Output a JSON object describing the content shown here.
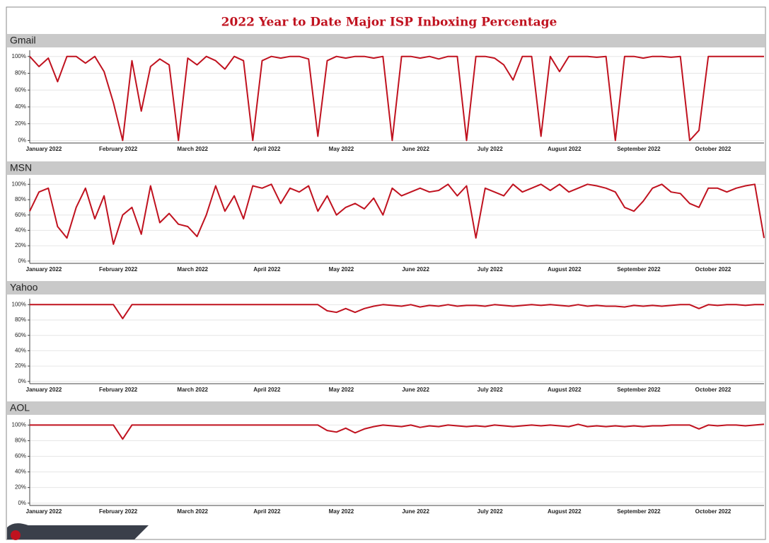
{
  "title": "2022 Year to Date Major ISP Inboxing Percentage",
  "chart_data": [
    {
      "type": "line",
      "title": "Gmail",
      "color": "#c0121f",
      "grid": true,
      "categories": [
        "January 2022",
        null,
        null,
        null,
        null,
        null,
        null,
        null,
        "February 2022",
        null,
        null,
        null,
        null,
        null,
        null,
        null,
        "March 2022",
        null,
        null,
        null,
        null,
        null,
        null,
        null,
        "April 2022",
        null,
        null,
        null,
        null,
        null,
        null,
        null,
        "May 2022",
        null,
        null,
        null,
        null,
        null,
        null,
        null,
        "June 2022",
        null,
        null,
        null,
        null,
        null,
        null,
        null,
        "July 2022",
        null,
        null,
        null,
        null,
        null,
        null,
        null,
        "August 2022",
        null,
        null,
        null,
        null,
        null,
        null,
        null,
        "September 2022",
        null,
        null,
        null,
        null,
        null,
        null,
        null,
        "October 2022",
        null,
        null,
        null,
        null,
        null,
        null,
        null
      ],
      "values": [
        100,
        88,
        98,
        70,
        100,
        100,
        92,
        100,
        82,
        45,
        0,
        95,
        35,
        88,
        97,
        90,
        0,
        98,
        90,
        100,
        95,
        85,
        100,
        95,
        0,
        95,
        100,
        98,
        100,
        100,
        97,
        5,
        95,
        100,
        98,
        100,
        100,
        98,
        100,
        0,
        100,
        100,
        98,
        100,
        97,
        100,
        100,
        0,
        100,
        100,
        98,
        90,
        72,
        100,
        100,
        5,
        100,
        82,
        100,
        100,
        100,
        99,
        100,
        0,
        100,
        100,
        98,
        100,
        100,
        99,
        100,
        0,
        12,
        100,
        100,
        100,
        100,
        100,
        100,
        100
      ],
      "ylim": [
        -3,
        104
      ],
      "yticks": [
        {
          "value": 0,
          "label": "0%"
        },
        {
          "value": 20,
          "label": "20%"
        },
        {
          "value": 40,
          "label": "40%"
        },
        {
          "value": 60,
          "label": "60%"
        },
        {
          "value": 80,
          "label": "80%"
        },
        {
          "value": 100,
          "label": "100%"
        }
      ]
    },
    {
      "type": "line",
      "title": "MSN",
      "color": "#c0121f",
      "grid": true,
      "categories": [
        "January 2022",
        null,
        null,
        null,
        null,
        null,
        null,
        null,
        "February 2022",
        null,
        null,
        null,
        null,
        null,
        null,
        null,
        "March 2022",
        null,
        null,
        null,
        null,
        null,
        null,
        null,
        "April 2022",
        null,
        null,
        null,
        null,
        null,
        null,
        null,
        "May 2022",
        null,
        null,
        null,
        null,
        null,
        null,
        null,
        "June 2022",
        null,
        null,
        null,
        null,
        null,
        null,
        null,
        "July 2022",
        null,
        null,
        null,
        null,
        null,
        null,
        null,
        "August 2022",
        null,
        null,
        null,
        null,
        null,
        null,
        null,
        "September 2022",
        null,
        null,
        null,
        null,
        null,
        null,
        null,
        "October 2022",
        null,
        null,
        null,
        null,
        null,
        null,
        null
      ],
      "values": [
        65,
        90,
        95,
        45,
        30,
        70,
        95,
        55,
        85,
        22,
        60,
        70,
        35,
        98,
        50,
        62,
        48,
        45,
        32,
        60,
        98,
        65,
        85,
        55,
        98,
        95,
        100,
        75,
        95,
        90,
        98,
        65,
        85,
        60,
        70,
        75,
        68,
        82,
        60,
        95,
        85,
        90,
        95,
        90,
        92,
        100,
        85,
        98,
        30,
        95,
        90,
        85,
        100,
        90,
        95,
        100,
        92,
        100,
        90,
        95,
        100,
        98,
        95,
        90,
        70,
        65,
        78,
        95,
        100,
        90,
        88,
        75,
        70,
        95,
        95,
        90,
        95,
        98,
        100,
        30
      ],
      "ylim": [
        -3,
        104
      ],
      "yticks": [
        {
          "value": 0,
          "label": "0%"
        },
        {
          "value": 20,
          "label": "20%"
        },
        {
          "value": 40,
          "label": "40%"
        },
        {
          "value": 60,
          "label": "60%"
        },
        {
          "value": 80,
          "label": "80%"
        },
        {
          "value": 100,
          "label": "100%"
        }
      ]
    },
    {
      "type": "line",
      "title": "Yahoo",
      "color": "#c0121f",
      "grid": true,
      "categories": [
        "January 2022",
        null,
        null,
        null,
        null,
        null,
        null,
        null,
        "February 2022",
        null,
        null,
        null,
        null,
        null,
        null,
        null,
        "March 2022",
        null,
        null,
        null,
        null,
        null,
        null,
        null,
        "April 2022",
        null,
        null,
        null,
        null,
        null,
        null,
        null,
        "May 2022",
        null,
        null,
        null,
        null,
        null,
        null,
        null,
        "June 2022",
        null,
        null,
        null,
        null,
        null,
        null,
        null,
        "July 2022",
        null,
        null,
        null,
        null,
        null,
        null,
        null,
        "August 2022",
        null,
        null,
        null,
        null,
        null,
        null,
        null,
        "September 2022",
        null,
        null,
        null,
        null,
        null,
        null,
        null,
        "October 2022",
        null,
        null,
        null,
        null,
        null,
        null,
        null
      ],
      "values": [
        100,
        100,
        100,
        100,
        100,
        100,
        100,
        100,
        100,
        100,
        82,
        100,
        100,
        100,
        100,
        100,
        100,
        100,
        100,
        100,
        100,
        100,
        100,
        100,
        100,
        100,
        100,
        100,
        100,
        100,
        100,
        100,
        92,
        90,
        95,
        90,
        95,
        98,
        100,
        99,
        98,
        100,
        97,
        99,
        98,
        100,
        98,
        99,
        99,
        98,
        100,
        99,
        98,
        99,
        100,
        99,
        100,
        99,
        98,
        100,
        98,
        99,
        98,
        98,
        97,
        99,
        98,
        99,
        98,
        99,
        100,
        100,
        95,
        100,
        99,
        100,
        100,
        99,
        100,
        100
      ],
      "ylim": [
        -3,
        104
      ],
      "yticks": [
        {
          "value": 0,
          "label": "0%"
        },
        {
          "value": 20,
          "label": "20%"
        },
        {
          "value": 40,
          "label": "40%"
        },
        {
          "value": 60,
          "label": "60%"
        },
        {
          "value": 80,
          "label": "80%"
        },
        {
          "value": 100,
          "label": "100%"
        }
      ]
    },
    {
      "type": "line",
      "title": "AOL",
      "color": "#c0121f",
      "grid": true,
      "categories": [
        "January 2022",
        null,
        null,
        null,
        null,
        null,
        null,
        null,
        "February 2022",
        null,
        null,
        null,
        null,
        null,
        null,
        null,
        "March 2022",
        null,
        null,
        null,
        null,
        null,
        null,
        null,
        "April 2022",
        null,
        null,
        null,
        null,
        null,
        null,
        null,
        "May 2022",
        null,
        null,
        null,
        null,
        null,
        null,
        null,
        "June 2022",
        null,
        null,
        null,
        null,
        null,
        null,
        null,
        "July 2022",
        null,
        null,
        null,
        null,
        null,
        null,
        null,
        "August 2022",
        null,
        null,
        null,
        null,
        null,
        null,
        null,
        "September 2022",
        null,
        null,
        null,
        null,
        null,
        null,
        null,
        "October 2022",
        null,
        null,
        null,
        null,
        null,
        null,
        null
      ],
      "values": [
        100,
        100,
        100,
        100,
        100,
        100,
        100,
        100,
        100,
        100,
        82,
        100,
        100,
        100,
        100,
        100,
        100,
        100,
        100,
        100,
        100,
        100,
        100,
        100,
        100,
        100,
        100,
        100,
        100,
        100,
        100,
        100,
        93,
        91,
        96,
        90,
        95,
        98,
        100,
        99,
        98,
        100,
        97,
        99,
        98,
        100,
        99,
        98,
        99,
        98,
        100,
        99,
        98,
        99,
        100,
        99,
        100,
        99,
        98,
        101,
        98,
        99,
        98,
        99,
        98,
        99,
        98,
        99,
        99,
        100,
        100,
        100,
        95,
        100,
        99,
        100,
        100,
        99,
        100,
        101
      ],
      "ylim": [
        -3,
        104
      ],
      "yticks": [
        {
          "value": 0,
          "label": "0%"
        },
        {
          "value": 20,
          "label": "20%"
        },
        {
          "value": 40,
          "label": "40%"
        },
        {
          "value": 60,
          "label": "60%"
        },
        {
          "value": 80,
          "label": "80%"
        },
        {
          "value": 100,
          "label": "100%"
        }
      ]
    }
  ]
}
